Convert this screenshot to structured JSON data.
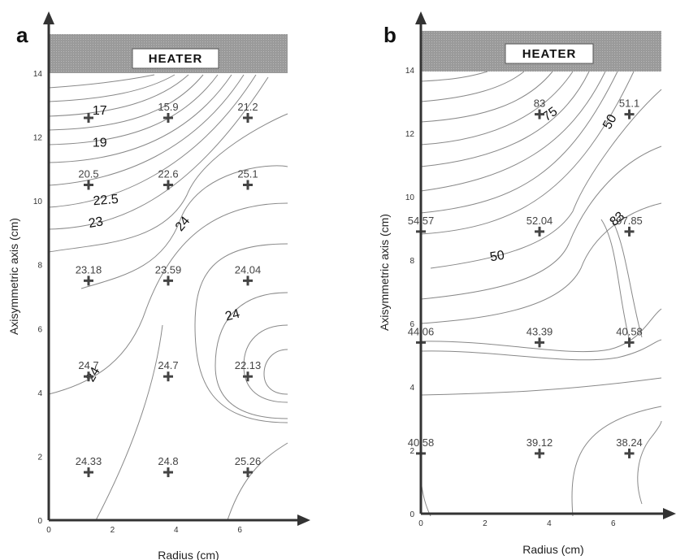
{
  "chart_data": [
    {
      "type": "contour",
      "panel": "a",
      "heater_label": "HEATER",
      "xlabel": "Radius (cm)",
      "ylabel": "Axisymmetric axis (cm)",
      "xlim": [
        0,
        7.5
      ],
      "ylim": [
        0,
        15.5
      ],
      "xticks": [
        "0",
        "2",
        "4",
        "6"
      ],
      "yticks": [
        "0",
        "2",
        "4",
        "6",
        "8",
        "10",
        "12",
        "14"
      ],
      "points": [
        {
          "x": 1.25,
          "y": 12.6,
          "label": ""
        },
        {
          "x": 3.75,
          "y": 12.6,
          "label": "15.9"
        },
        {
          "x": 6.25,
          "y": 12.6,
          "label": "21.2"
        },
        {
          "x": 1.25,
          "y": 10.5,
          "label": "20.5"
        },
        {
          "x": 3.75,
          "y": 10.5,
          "label": "22.6"
        },
        {
          "x": 6.25,
          "y": 10.5,
          "label": "25.1"
        },
        {
          "x": 1.25,
          "y": 7.5,
          "label": "23.18"
        },
        {
          "x": 3.75,
          "y": 7.5,
          "label": "23.59"
        },
        {
          "x": 6.25,
          "y": 7.5,
          "label": "24.04"
        },
        {
          "x": 1.25,
          "y": 4.5,
          "label": "24.7"
        },
        {
          "x": 3.75,
          "y": 4.5,
          "label": "24.7"
        },
        {
          "x": 6.25,
          "y": 4.5,
          "label": "22.13"
        },
        {
          "x": 1.25,
          "y": 1.5,
          "label": "24.33"
        },
        {
          "x": 3.75,
          "y": 1.5,
          "label": "24.8"
        },
        {
          "x": 6.25,
          "y": 1.5,
          "label": "25.26"
        }
      ],
      "contour_labels": [
        {
          "text": "17",
          "x": 1.6,
          "y": 12.7,
          "rot": 0
        },
        {
          "text": "19",
          "x": 1.6,
          "y": 11.7,
          "rot": 0
        },
        {
          "text": "22.5",
          "x": 1.8,
          "y": 9.9,
          "rot": -5
        },
        {
          "text": "23",
          "x": 1.5,
          "y": 9.2,
          "rot": -10
        },
        {
          "text": "24",
          "x": 4.3,
          "y": 9.2,
          "rot": -50
        },
        {
          "text": "24",
          "x": 5.8,
          "y": 6.3,
          "rot": -15
        },
        {
          "text": "24",
          "x": 1.5,
          "y": 4.5,
          "rot": -60
        }
      ]
    },
    {
      "type": "contour",
      "panel": "b",
      "heater_label": "HEATER",
      "xlabel": "Radius (cm)",
      "ylabel": "Axisymmetric axis (cm)",
      "xlim": [
        0,
        7.5
      ],
      "ylim": [
        0,
        15.5
      ],
      "xticks": [
        "0",
        "2",
        "4",
        "6"
      ],
      "yticks": [
        "0",
        "2",
        "4",
        "6",
        "8",
        "10",
        "12",
        "14"
      ],
      "points": [
        {
          "x": 3.7,
          "y": 12.6,
          "label": "83"
        },
        {
          "x": 6.5,
          "y": 12.6,
          "label": "51.1"
        },
        {
          "x": 0.0,
          "y": 8.9,
          "label": "54.57"
        },
        {
          "x": 3.7,
          "y": 8.9,
          "label": "52.04"
        },
        {
          "x": 6.5,
          "y": 8.9,
          "label": "97.85"
        },
        {
          "x": 0.0,
          "y": 5.4,
          "label": "44.06"
        },
        {
          "x": 3.7,
          "y": 5.4,
          "label": "43.39"
        },
        {
          "x": 6.5,
          "y": 5.4,
          "label": "40.58"
        },
        {
          "x": 0.0,
          "y": 1.9,
          "label": "40.58"
        },
        {
          "x": 3.7,
          "y": 1.9,
          "label": "39.12"
        },
        {
          "x": 6.5,
          "y": 1.9,
          "label": "38.24"
        }
      ],
      "contour_labels": [
        {
          "text": "75",
          "x": 4.1,
          "y": 12.5,
          "rot": -35
        },
        {
          "text": "50",
          "x": 6.0,
          "y": 12.3,
          "rot": -60
        },
        {
          "text": "50",
          "x": 2.4,
          "y": 8.0,
          "rot": -10
        },
        {
          "text": "83",
          "x": 6.2,
          "y": 9.2,
          "rot": -40
        }
      ]
    }
  ]
}
